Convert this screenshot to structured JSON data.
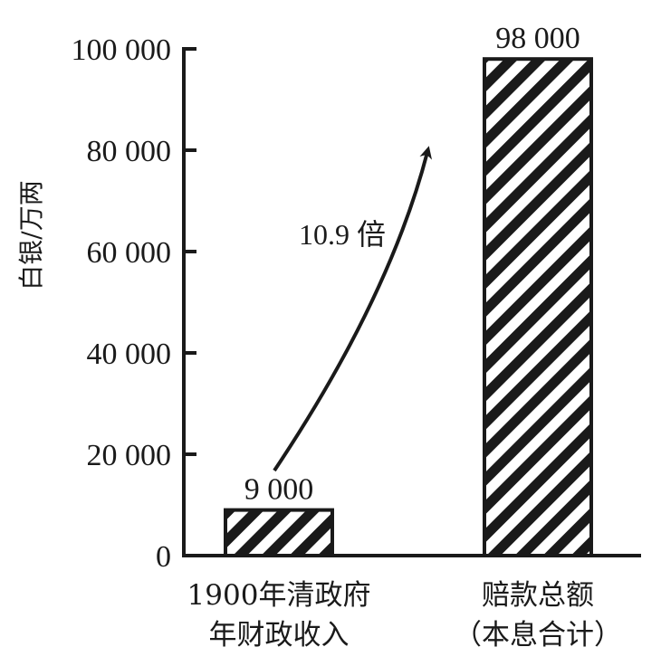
{
  "chart_data": {
    "type": "bar",
    "categories": [
      [
        "1900年清政府",
        "年财政收入"
      ],
      [
        "赔款总额",
        "（本息合计）"
      ]
    ],
    "values": [
      9000,
      98000
    ],
    "value_labels": [
      "9 000",
      "98 000"
    ],
    "ylabel": "白银/万两",
    "ylim": [
      0,
      100000
    ],
    "yticks": [
      0,
      20000,
      40000,
      60000,
      80000,
      100000
    ],
    "ytick_labels": [
      "0",
      "20 000",
      "40 000",
      "60 000",
      "80 000",
      "100 000"
    ],
    "annotation": "10.9 倍",
    "bar_fill": "diagonal-hatch",
    "colors": {
      "ink": "#1a1a1a",
      "background": "#ffffff"
    }
  }
}
